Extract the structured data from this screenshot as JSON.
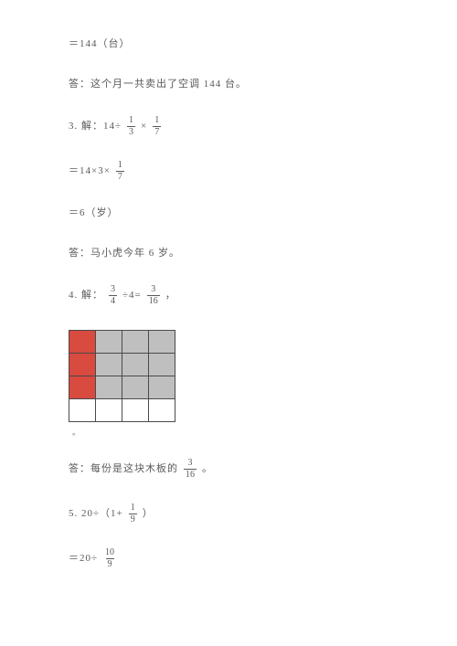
{
  "lines": {
    "l1": "＝144（台）",
    "l2": "答：这个月一共卖出了空调 144 台。",
    "l3a": "3. 解：14÷",
    "l3b": "×",
    "l4a": "＝14×3×",
    "l5": "＝6（岁）",
    "l6": "答：马小虎今年 6 岁。",
    "l7a": "4. 解：",
    "l7b": "÷4=",
    "l7c": "，",
    "l8a": "答：每份是这块木板的",
    "l8b": "。",
    "l9a": "5. 20÷（1+",
    "l9b": "）",
    "l10a": "＝20÷",
    "grid_after": "。"
  },
  "fracs": {
    "f1_3": {
      "n": "1",
      "d": "3"
    },
    "f1_7": {
      "n": "1",
      "d": "7"
    },
    "f3_4": {
      "n": "3",
      "d": "4"
    },
    "f3_16": {
      "n": "3",
      "d": "16"
    },
    "f1_9": {
      "n": "1",
      "d": "9"
    },
    "f10_9": {
      "n": "10",
      "d": "9"
    }
  },
  "grid": {
    "rows": 4,
    "cols": 4,
    "red_color": "#d94a3f",
    "gray_color": "#bfbfbf",
    "border_color": "#4a4a4a",
    "cells": [
      [
        "red",
        "gray",
        "gray",
        "gray"
      ],
      [
        "red",
        "gray",
        "gray",
        "gray"
      ],
      [
        "red",
        "gray",
        "gray",
        "gray"
      ],
      [
        "",
        "",
        "",
        ""
      ]
    ]
  },
  "page_bg": "#ffffff",
  "text_color": "#5a5a5a"
}
